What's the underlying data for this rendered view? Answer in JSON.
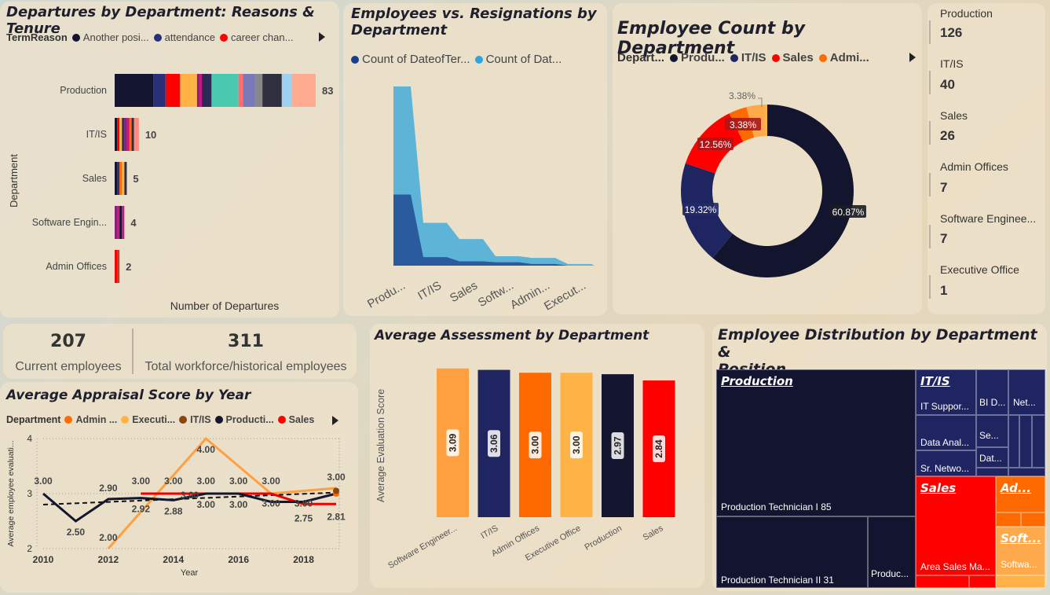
{
  "panels": {
    "departures": {
      "title": "Departures by Department: Reasons & Tenure",
      "legend_title": "TermReason",
      "legend": [
        {
          "label": "Another posi...",
          "color": "#14152f"
        },
        {
          "label": "attendance",
          "color": "#2a2f7a"
        },
        {
          "label": "career chan...",
          "color": "#ff0000"
        }
      ],
      "xlabel": "Number of Departures",
      "ylabel": "Department"
    },
    "resignations": {
      "title_line1": "Employees vs. Resignations by",
      "title_line2": "Department",
      "legend": [
        {
          "label": "Count of DateofTer...",
          "color": "#1a3e8c"
        },
        {
          "label": "Count of Dat...",
          "color": "#2ea3de"
        }
      ]
    },
    "headcount": {
      "title": "Employee Count by Department",
      "legend": [
        {
          "label": "Depart...",
          "bold": true,
          "color": ""
        },
        {
          "label": "Produ...",
          "color": "#14152f"
        },
        {
          "label": "IT/IS",
          "color": "#1f2560"
        },
        {
          "label": "Sales",
          "color": "#ff0000"
        },
        {
          "label": "Admi...",
          "color": "#ff6a00"
        }
      ]
    },
    "cards": [
      {
        "name": "Production",
        "value": "126"
      },
      {
        "name": "IT/IS",
        "value": "40"
      },
      {
        "name": "Sales",
        "value": "26"
      },
      {
        "name": "Admin Offices",
        "value": "7"
      },
      {
        "name": "Software Enginee...",
        "value": "7"
      },
      {
        "name": "Executive Office",
        "value": "1"
      }
    ],
    "kpis": [
      {
        "value": "207",
        "label": "Current employees"
      },
      {
        "value": "311",
        "label": "Total workforce/historical employees"
      }
    ],
    "appraisal": {
      "title": "Average Appraisal Score by Year",
      "legend": [
        {
          "label": "Department",
          "bold": true,
          "color": ""
        },
        {
          "label": "Admin ...",
          "color": "#ff6a00"
        },
        {
          "label": "Executi...",
          "color": "#ffb347"
        },
        {
          "label": "IT/IS",
          "color": "#8b4513"
        },
        {
          "label": "Producti...",
          "color": "#14152f"
        },
        {
          "label": "Sales",
          "color": "#ff0000"
        }
      ]
    },
    "assessment": {
      "title": "Average Assessment by Department"
    },
    "treemap": {
      "title_line1": "Employee Distribution by Department &",
      "title_line2": "Position",
      "nodes": {
        "production_head": "Production",
        "prod_tech1": "Production Technician I 85",
        "prod_tech2": "Production Technician II 31",
        "prod_other": "Produc...",
        "itis_head": "IT/IS",
        "it_support": "IT Suppor...",
        "bi": "BI D...",
        "net": "Net...",
        "data_anal": "Data Anal...",
        "se": "Se...",
        "dat": "Dat...",
        "sr_net": "Sr. Netwo...",
        "sales_head": "Sales",
        "area_sales": "Area Sales Ma...",
        "admin_head": "Ad...",
        "soft_head": "Soft...",
        "softwa": "Softwa..."
      }
    }
  },
  "chart_data": [
    {
      "type": "bar",
      "orientation": "horizontal-stacked",
      "title": "Departures by Department: Reasons & Tenure",
      "xlabel": "Number of Departures",
      "ylabel": "Department",
      "categories": [
        "Production",
        "IT/IS",
        "Sales",
        "Software Engin...",
        "Admin Offices"
      ],
      "totals": [
        83,
        10,
        5,
        4,
        2
      ],
      "segments": [
        [
          {
            "v": 16,
            "c": "#14152f"
          },
          {
            "v": 5,
            "c": "#2a2f7a"
          },
          {
            "v": 6,
            "c": "#ff0000"
          },
          {
            "v": 7,
            "c": "#ffb347"
          },
          {
            "v": 1,
            "c": "#8a1f7a"
          },
          {
            "v": 1,
            "c": "#c71585"
          },
          {
            "v": 4,
            "c": "#2a2a55"
          },
          {
            "v": 11,
            "c": "#48c9b0"
          },
          {
            "v": 2,
            "c": "#ff6f6f"
          },
          {
            "v": 5,
            "c": "#7a7ab8"
          },
          {
            "v": 3,
            "c": "#888888"
          },
          {
            "v": 8,
            "c": "#2f2f40"
          },
          {
            "v": 4,
            "c": "#9ed0ef"
          },
          {
            "v": 10,
            "c": "#ffab91"
          }
        ],
        [
          {
            "v": 1,
            "c": "#14152f"
          },
          {
            "v": 1,
            "c": "#ff0000"
          },
          {
            "v": 1,
            "c": "#ffb347"
          },
          {
            "v": 1,
            "c": "#2a2f7a"
          },
          {
            "v": 1,
            "c": "#8a1f7a"
          },
          {
            "v": 1,
            "c": "#c71585"
          },
          {
            "v": 1,
            "c": "#ff6a00"
          },
          {
            "v": 1,
            "c": "#2f2f40"
          },
          {
            "v": 2,
            "c": "#ff8a80"
          }
        ],
        [
          {
            "v": 1,
            "c": "#14152f"
          },
          {
            "v": 1,
            "c": "#2a2f7a"
          },
          {
            "v": 1,
            "c": "#ff6a00"
          },
          {
            "v": 1,
            "c": "#ffb347"
          },
          {
            "v": 1,
            "c": "#2f2f40"
          }
        ],
        [
          {
            "v": 1,
            "c": "#8a1f7a"
          },
          {
            "v": 1,
            "c": "#c71585"
          },
          {
            "v": 1,
            "c": "#14152f"
          },
          {
            "v": 1,
            "c": "#c71585"
          }
        ],
        [
          {
            "v": 1,
            "c": "#ff0000"
          },
          {
            "v": 1,
            "c": "#c0392b"
          }
        ]
      ]
    },
    {
      "type": "area",
      "title": "Employees vs. Resignations by Department",
      "categories": [
        "Produ...",
        "IT/IS",
        "Sales",
        "Softw...",
        "Admin...",
        "Execut..."
      ],
      "series": [
        {
          "name": "Count of DateofTer...",
          "values": [
            83,
            10,
            5,
            4,
            2,
            0
          ]
        },
        {
          "name": "Count of Dat...",
          "values": [
            209,
            50,
            31,
            11,
            9,
            2
          ]
        }
      ]
    },
    {
      "type": "pie",
      "style": "donut",
      "title": "Employee Count by Department",
      "labels": [
        "Production",
        "IT/IS",
        "Sales",
        "Admin Offices",
        "Software Engineering",
        "Executive Office"
      ],
      "values": [
        60.87,
        19.32,
        12.56,
        3.38,
        3.38,
        0.49
      ],
      "value_labels": [
        "60.87%",
        "19.32%",
        "12.56%",
        "3.38%",
        "3.38%",
        ""
      ]
    },
    {
      "type": "line",
      "title": "Average Appraisal Score by Year",
      "xlabel": "Year",
      "ylabel": "Average employee evaluati...",
      "x_ticks": [
        "2010",
        "2012",
        "2014",
        "2016",
        "2018"
      ],
      "y_ticks": [
        "2",
        "3",
        "4"
      ],
      "xlim": [
        2010,
        2019
      ],
      "ylim": [
        2,
        4
      ],
      "series": [
        {
          "name": "Admin ...",
          "color": "#ff6a00",
          "points": [
            [
              2019,
              3.0
            ]
          ]
        },
        {
          "name": "Executi...",
          "color": "#ffa040",
          "points": [
            [
              2012,
              2.0
            ],
            [
              2015,
              4.0
            ],
            [
              2017,
              3.0
            ],
            [
              2019,
              3.1
            ]
          ]
        },
        {
          "name": "IT/IS",
          "color": "#8b4513",
          "points": [
            [
              2019,
              3.05
            ]
          ]
        },
        {
          "name": "Producti...",
          "color": "#14152f",
          "points": [
            [
              2010,
              3.0
            ],
            [
              2011,
              2.5
            ],
            [
              2012,
              2.9
            ],
            [
              2013,
              2.92
            ],
            [
              2014,
              2.88
            ],
            [
              2015,
              3.0
            ],
            [
              2016,
              3.0
            ],
            [
              2017,
              2.85
            ],
            [
              2018,
              2.85
            ],
            [
              2019,
              3.0
            ]
          ]
        },
        {
          "name": "Sales",
          "color": "#ee0000",
          "points": [
            [
              2013,
              3.0
            ],
            [
              2014,
              3.0
            ],
            [
              2015,
              3.0
            ],
            [
              2016,
              3.0
            ],
            [
              2017,
              3.0
            ],
            [
              2018,
              2.81
            ],
            [
              2019,
              2.81
            ]
          ]
        }
      ],
      "trend": [
        [
          2010,
          2.8
        ],
        [
          2019,
          3.02
        ]
      ],
      "labels": [
        {
          "x": 2010,
          "y": 3.0,
          "text": "3.00",
          "dy": -12
        },
        {
          "x": 2011,
          "y": 2.5,
          "text": "2.50",
          "dy": 18
        },
        {
          "x": 2012,
          "y": 2.9,
          "text": "2.90",
          "dy": -10
        },
        {
          "x": 2012,
          "y": 2.0,
          "text": "2.00",
          "dy": -10
        },
        {
          "x": 2013,
          "y": 3.0,
          "text": "3.00",
          "dy": -12
        },
        {
          "x": 2013,
          "y": 2.92,
          "text": "2.92",
          "dy": 18
        },
        {
          "x": 2014,
          "y": 3.0,
          "text": "3.00",
          "dy": -12
        },
        {
          "x": 2014,
          "y": 2.88,
          "text": "2.88",
          "dy": 18
        },
        {
          "x": 2014.5,
          "y": 3.0,
          "text": "3.00",
          "dy": 6
        },
        {
          "x": 2015,
          "y": 4.0,
          "text": "4.00",
          "dy": 18
        },
        {
          "x": 2015,
          "y": 3.0,
          "text": "3.00",
          "dy": -12
        },
        {
          "x": 2015,
          "y": 3.0,
          "text": "3.00",
          "dy": 18
        },
        {
          "x": 2016,
          "y": 3.0,
          "text": "3.00",
          "dy": -12
        },
        {
          "x": 2016,
          "y": 3.0,
          "text": "3.00",
          "dy": 18
        },
        {
          "x": 2017,
          "y": 3.0,
          "text": "3.00",
          "dy": -12
        },
        {
          "x": 2017,
          "y": 2.85,
          "text": "3.00",
          "dy": 6
        },
        {
          "x": 2018,
          "y": 2.85,
          "text": "3.00",
          "dy": 6
        },
        {
          "x": 2018,
          "y": 2.75,
          "text": "2.75",
          "dy": 18
        },
        {
          "x": 2019,
          "y": 3.1,
          "text": "3.00",
          "dy": -10
        },
        {
          "x": 2019,
          "y": 2.81,
          "text": "2.81",
          "dy": 20
        }
      ]
    },
    {
      "type": "bar",
      "title": "Average Assessment by Department",
      "ylabel": "Average Evaluation Score",
      "categories": [
        "Software Engineer...",
        "IT/IS",
        "Admin Offices",
        "Executive Office",
        "Production",
        "Sales"
      ],
      "values": [
        3.09,
        3.06,
        3.0,
        3.0,
        2.97,
        2.84
      ],
      "value_labels": [
        "3.09",
        "3.06",
        "3.00",
        "3.00",
        "2.97",
        "2.84"
      ],
      "colors": [
        "#ffa040",
        "#1f2560",
        "#ff6a00",
        "#ffb347",
        "#14152f",
        "#ff0000"
      ],
      "ylim": [
        0,
        3.2
      ]
    }
  ]
}
